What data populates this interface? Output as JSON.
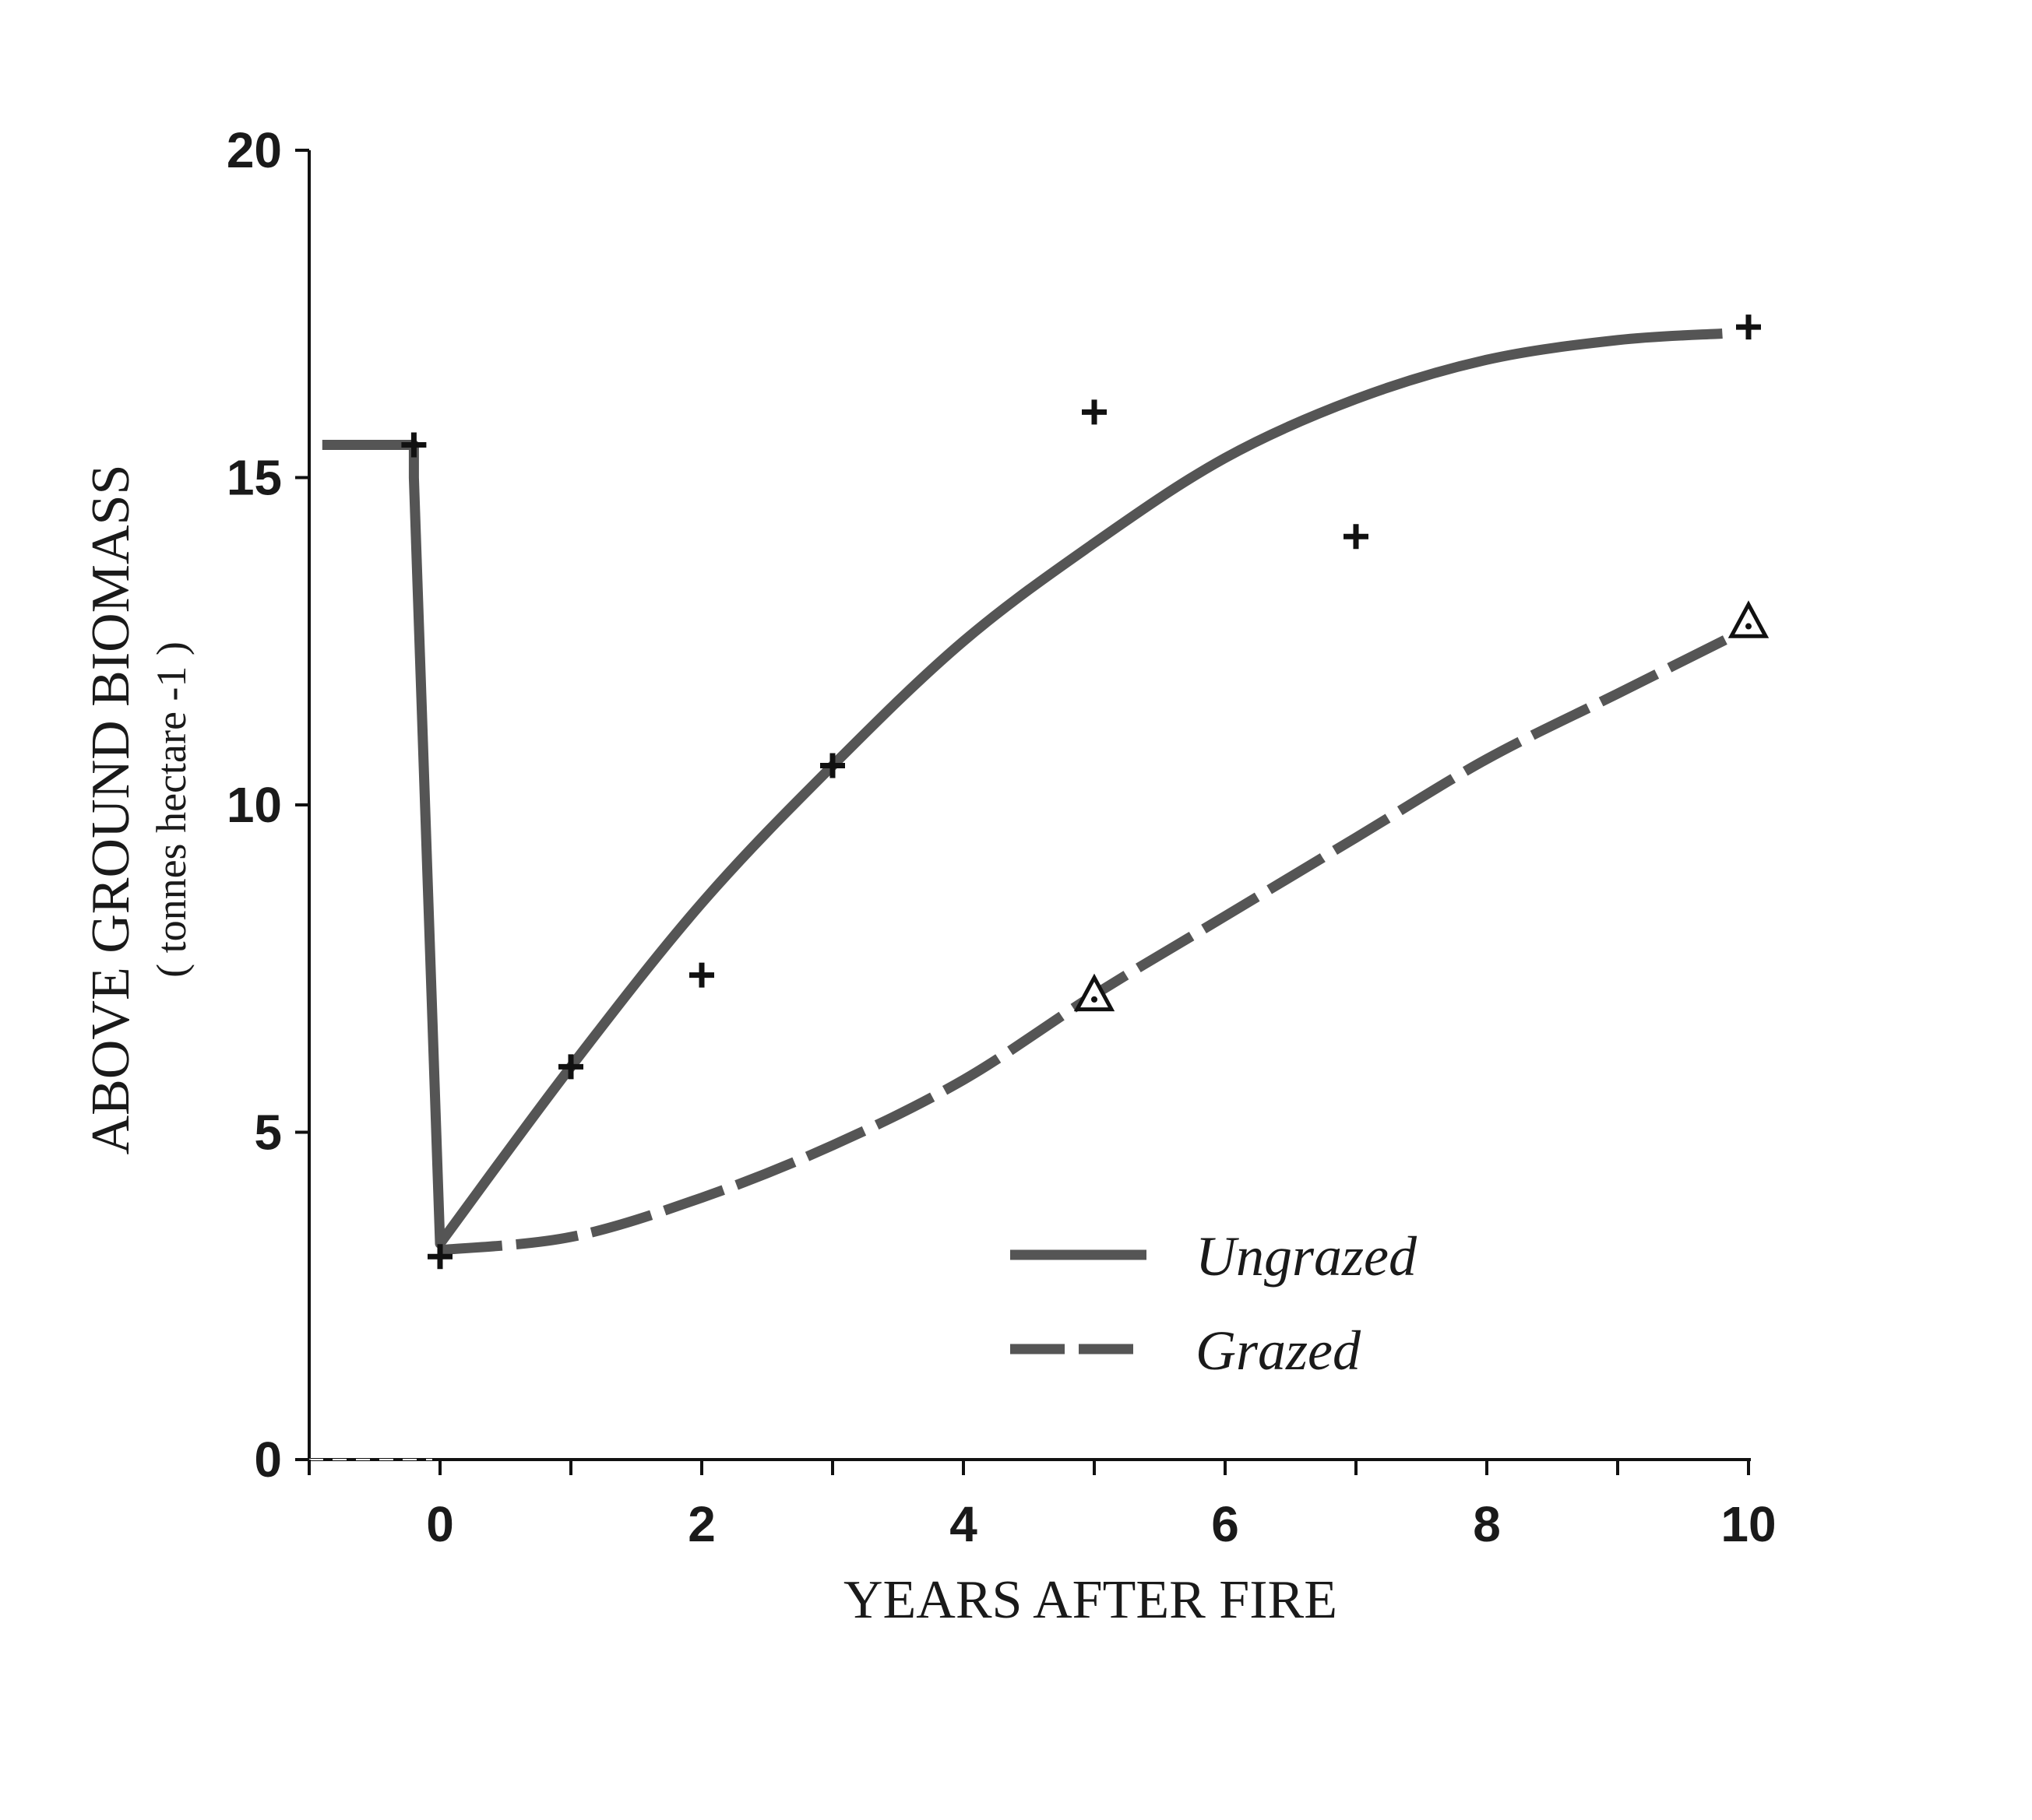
{
  "chart_data": {
    "type": "line",
    "xlabel": "YEARS AFTER FIRE",
    "ylabel": "ABOVE GROUND BIOMASS",
    "ylabel_units": "( tonnes hectare -1 )",
    "xlim": [
      -1,
      10
    ],
    "ylim": [
      0,
      20
    ],
    "x_ticks": [
      0,
      2,
      4,
      6,
      8,
      10
    ],
    "x_minor_ticks": [
      -1,
      1,
      3,
      5,
      7,
      9
    ],
    "y_ticks": [
      0,
      5,
      10,
      15,
      20
    ],
    "grid": false,
    "legend_position": "lower-right",
    "colors": {
      "line": "#555555",
      "marker": "#111111",
      "axis": "#111111"
    },
    "series": [
      {
        "name": "Ungrazed",
        "style": "solid",
        "curve": {
          "x": [
            -0.9,
            -0.2,
            -0.2,
            0,
            1,
            2,
            3,
            4,
            5,
            6,
            7,
            8,
            9,
            9.8
          ],
          "y": [
            15.5,
            15.5,
            15.0,
            3.3,
            6.0,
            8.5,
            10.6,
            12.5,
            14.0,
            15.3,
            16.2,
            16.8,
            17.1,
            17.2
          ]
        },
        "points": {
          "marker": "plus",
          "x": [
            -0.2,
            0,
            1,
            2,
            3,
            5,
            7,
            10
          ],
          "y": [
            15.5,
            3.1,
            6.0,
            7.4,
            10.6,
            16.0,
            14.1,
            17.3
          ]
        }
      },
      {
        "name": "Grazed",
        "style": "dashed",
        "curve": {
          "x": [
            0,
            1,
            2,
            3,
            4,
            5,
            6,
            7,
            8,
            9,
            10
          ],
          "y": [
            3.2,
            3.4,
            4.0,
            4.8,
            5.8,
            7.1,
            8.3,
            9.5,
            10.7,
            11.7,
            12.7
          ]
        },
        "points": {
          "marker": "triangle",
          "x": [
            5,
            10
          ],
          "y": [
            7.1,
            12.8
          ]
        }
      }
    ]
  }
}
